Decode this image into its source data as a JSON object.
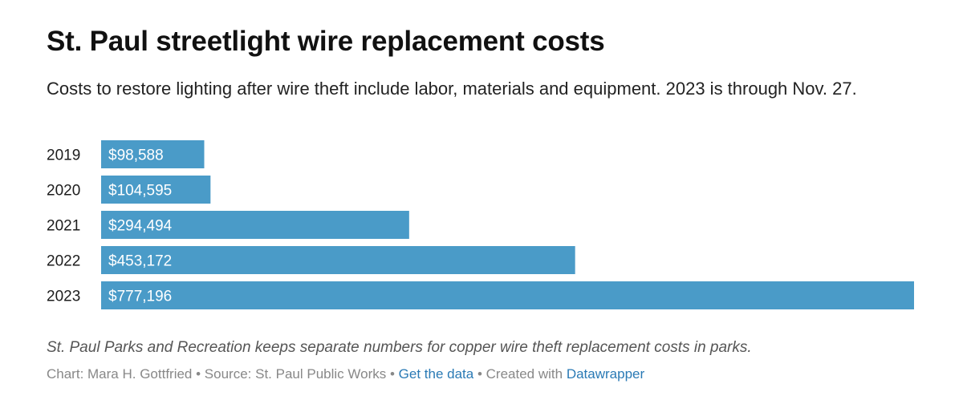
{
  "header": {
    "title": "St. Paul streetlight wire replacement costs",
    "subtitle": "Costs to restore lighting after wire theft include labor, materials and equipment. 2023 is through Nov. 27."
  },
  "chart_data": {
    "type": "bar",
    "orientation": "horizontal",
    "categories": [
      "2019",
      "2020",
      "2021",
      "2022",
      "2023"
    ],
    "values": [
      98588,
      104595,
      294494,
      453172,
      777196
    ],
    "value_labels": [
      "$98,588",
      "$104,595",
      "$294,494",
      "$453,172",
      "$777,196"
    ],
    "xlim": [
      0,
      777196
    ],
    "bar_color": "#4a9bc8",
    "label_color": "#ffffff",
    "grid": false
  },
  "notes": "St. Paul Parks and Recreation keeps separate numbers for copper wire theft replacement costs in parks.",
  "footer": {
    "chart_credit": "Chart: Mara H. Gottfried",
    "separator": " • ",
    "source": "Source: St. Paul Public Works",
    "get_data_link": "Get the data",
    "created_with": "Created with",
    "tool_link": "Datawrapper",
    "link_color": "#2a7ab5"
  }
}
